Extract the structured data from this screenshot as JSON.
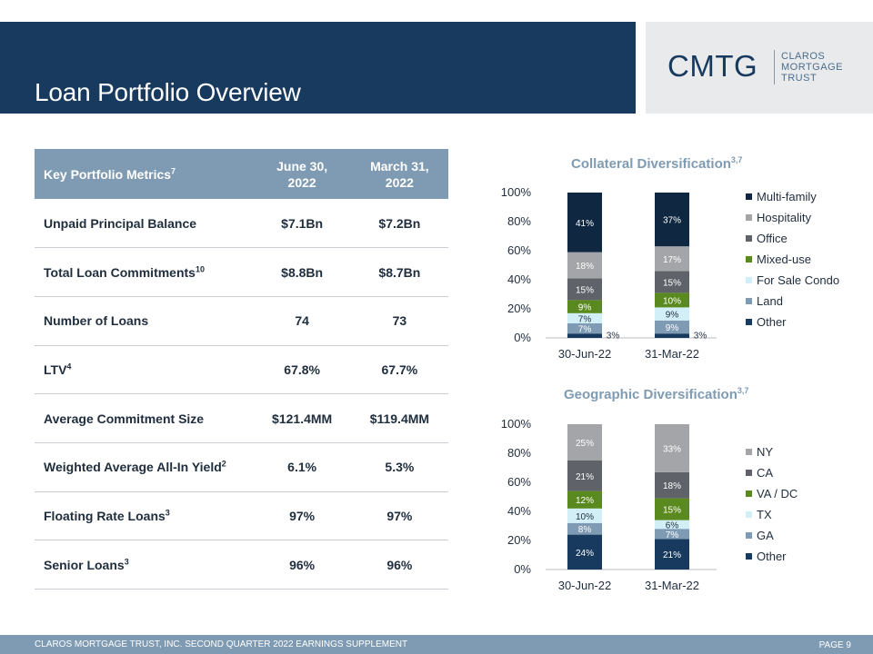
{
  "header": {
    "title": "Loan Portfolio Overview",
    "logo_mark": "CMTG",
    "logo_lines": [
      "CLAROS",
      "MORTGAGE",
      "TRUST"
    ]
  },
  "metrics_table": {
    "header": {
      "label": "Key Portfolio Metrics",
      "label_sup": "7",
      "col1_line1": "June 30,",
      "col1_line2": "2022",
      "col2_line1": "March 31,",
      "col2_line2": "2022"
    },
    "rows": [
      {
        "label": "Unpaid Principal Balance",
        "sup": "",
        "v1": "$7.1Bn",
        "v2": "$7.2Bn"
      },
      {
        "label": "Total Loan Commitments",
        "sup": "10",
        "v1": "$8.8Bn",
        "v2": "$8.7Bn"
      },
      {
        "label": "Number of Loans",
        "sup": "",
        "v1": "74",
        "v2": "73"
      },
      {
        "label": "LTV",
        "sup": "4",
        "v1": "67.8%",
        "v2": "67.7%"
      },
      {
        "label": "Average Commitment Size",
        "sup": "",
        "v1": "$121.4MM",
        "v2": "$119.4MM"
      },
      {
        "label": "Weighted Average All-In Yield",
        "sup": "2",
        "v1": "6.1%",
        "v2": "5.3%"
      },
      {
        "label": "Floating Rate Loans",
        "sup": "3",
        "v1": "97%",
        "v2": "97%"
      },
      {
        "label": "Senior Loans",
        "sup": "3",
        "v1": "96%",
        "v2": "96%"
      }
    ]
  },
  "chart_data": [
    {
      "type": "bar",
      "stacked": true,
      "title": "Collateral Diversification",
      "title_sup": "3,7",
      "categories": [
        "30-Jun-22",
        "31-Mar-22"
      ],
      "ylim": [
        0,
        100
      ],
      "yticks": [
        "0%",
        "20%",
        "40%",
        "60%",
        "80%",
        "100%"
      ],
      "legend_position": "right",
      "series": [
        {
          "name": "Other",
          "color": "#173a5e",
          "values": [
            3,
            3
          ],
          "labels": [
            "3%",
            "3%"
          ]
        },
        {
          "name": "Land",
          "color": "#7f9bb3",
          "values": [
            7,
            9
          ],
          "labels": [
            "7%",
            "9%"
          ]
        },
        {
          "name": "For Sale Condo",
          "color": "#d2eef7",
          "values": [
            7,
            9
          ],
          "labels": [
            "7%",
            "9%"
          ]
        },
        {
          "name": "Mixed-use",
          "color": "#5a8a1f",
          "values": [
            9,
            10
          ],
          "labels": [
            "9%",
            "10%"
          ]
        },
        {
          "name": "Office",
          "color": "#5f6369",
          "values": [
            15,
            15
          ],
          "labels": [
            "15%",
            "15%"
          ]
        },
        {
          "name": "Hospitality",
          "color": "#a3a5a8",
          "values": [
            18,
            17
          ],
          "labels": [
            "18%",
            "17%"
          ]
        },
        {
          "name": "Multi-family",
          "color": "#0f2740",
          "values": [
            41,
            37
          ],
          "labels": [
            "41%",
            "37%"
          ]
        }
      ]
    },
    {
      "type": "bar",
      "stacked": true,
      "title": "Geographic Diversification",
      "title_sup": "3,7",
      "categories": [
        "30-Jun-22",
        "31-Mar-22"
      ],
      "ylim": [
        0,
        100
      ],
      "yticks": [
        "0%",
        "20%",
        "40%",
        "60%",
        "80%",
        "100%"
      ],
      "legend_position": "right",
      "series": [
        {
          "name": "Other",
          "color": "#173a5e",
          "values": [
            24,
            21
          ],
          "labels": [
            "24%",
            "21%"
          ]
        },
        {
          "name": "GA",
          "color": "#7f9bb3",
          "values": [
            8,
            7
          ],
          "labels": [
            "8%",
            "7%"
          ]
        },
        {
          "name": "TX",
          "color": "#d2eef7",
          "values": [
            10,
            6
          ],
          "labels": [
            "10%",
            "6%"
          ]
        },
        {
          "name": "VA / DC",
          "color": "#5a8a1f",
          "values": [
            12,
            15
          ],
          "labels": [
            "12%",
            "15%"
          ]
        },
        {
          "name": "CA",
          "color": "#5f6369",
          "values": [
            21,
            18
          ],
          "labels": [
            "21%",
            "18%"
          ]
        },
        {
          "name": "NY",
          "color": "#a3a5a8",
          "values": [
            25,
            33
          ],
          "labels": [
            "25%",
            "33%"
          ]
        }
      ]
    }
  ],
  "footer": {
    "text": "CLAROS MORTGAGE TRUST, INC. SECOND QUARTER 2022 EARNINGS SUPPLEMENT",
    "page": "PAGE 9"
  }
}
